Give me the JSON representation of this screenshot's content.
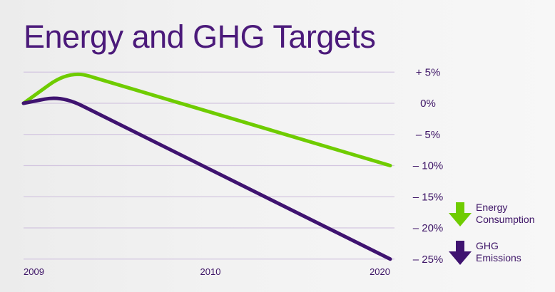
{
  "chart_data": {
    "type": "line",
    "title": "Energy and GHG Targets",
    "xlabel": "",
    "ylabel": "",
    "x_ticks": [
      "2009",
      "2010",
      "2020"
    ],
    "y_ticks": [
      "+ 5%",
      "0%",
      "– 5%",
      "– 10%",
      "– 15%",
      "– 20%",
      "– 25%"
    ],
    "y_tick_values": [
      5,
      0,
      -5,
      -10,
      -15,
      -20,
      -25
    ],
    "ylim": [
      -25,
      5
    ],
    "grid": true,
    "legend_position": "right",
    "series": [
      {
        "name": "Energy Consumption",
        "color": "#6fcc00",
        "points": [
          {
            "t": 0.0,
            "y": 0
          },
          {
            "t": 0.125,
            "y": 5.3
          },
          {
            "t": 1.0,
            "y": -10
          }
        ]
      },
      {
        "name": "GHG Emissions",
        "color": "#3f1370",
        "points": [
          {
            "t": 0.0,
            "y": 0
          },
          {
            "t": 0.105,
            "y": 1.2
          },
          {
            "t": 1.0,
            "y": -25
          }
        ]
      }
    ]
  },
  "legend": [
    {
      "line1": "Energy",
      "line2": "Consumption",
      "icon": "arrow-down-icon",
      "color": "#6fcc00"
    },
    {
      "line1": "GHG",
      "line2": "Emissions",
      "icon": "arrow-down-icon",
      "color": "#3f1370"
    }
  ]
}
